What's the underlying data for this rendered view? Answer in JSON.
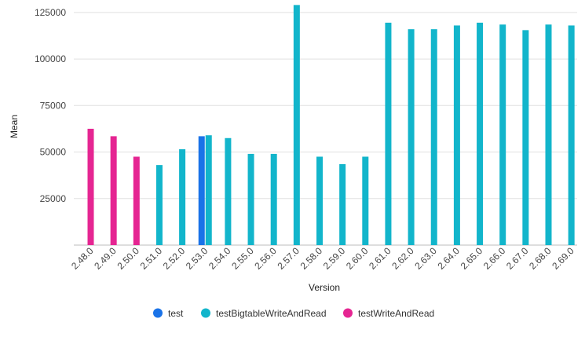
{
  "chart_data": {
    "type": "bar",
    "title": "",
    "xlabel": "Version",
    "ylabel": "Mean",
    "ylim": [
      0,
      130000
    ],
    "yticks": [
      25000,
      50000,
      75000,
      100000,
      125000
    ],
    "grid": true,
    "legend_position": "bottom",
    "categories": [
      "2.48.0",
      "2.49.0",
      "2.50.0",
      "2.51.0",
      "2.52.0",
      "2.53.0",
      "2.54.0",
      "2.55.0",
      "2.56.0",
      "2.57.0",
      "2.58.0",
      "2.59.0",
      "2.60.0",
      "2.61.0",
      "2.62.0",
      "2.63.0",
      "2.64.0",
      "2.65.0",
      "2.66.0",
      "2.67.0",
      "2.68.0",
      "2.69.0"
    ],
    "series": [
      {
        "name": "test",
        "color": "#1a73e8",
        "values": [
          null,
          null,
          null,
          null,
          null,
          58500,
          null,
          null,
          null,
          null,
          null,
          null,
          null,
          null,
          null,
          null,
          null,
          null,
          null,
          null,
          null,
          null
        ]
      },
      {
        "name": "testBigtableWriteAndRead",
        "color": "#12b5cb",
        "values": [
          null,
          null,
          null,
          43000,
          51500,
          59000,
          57500,
          49000,
          49000,
          129000,
          47500,
          43500,
          47500,
          119500,
          116000,
          116000,
          118000,
          119500,
          118500,
          115500,
          118500,
          118000
        ]
      },
      {
        "name": "testWriteAndRead",
        "color": "#e52592",
        "values": [
          62500,
          58500,
          47500,
          null,
          null,
          null,
          null,
          null,
          null,
          null,
          null,
          null,
          null,
          null,
          null,
          null,
          null,
          null,
          null,
          null,
          null,
          null
        ]
      }
    ]
  }
}
